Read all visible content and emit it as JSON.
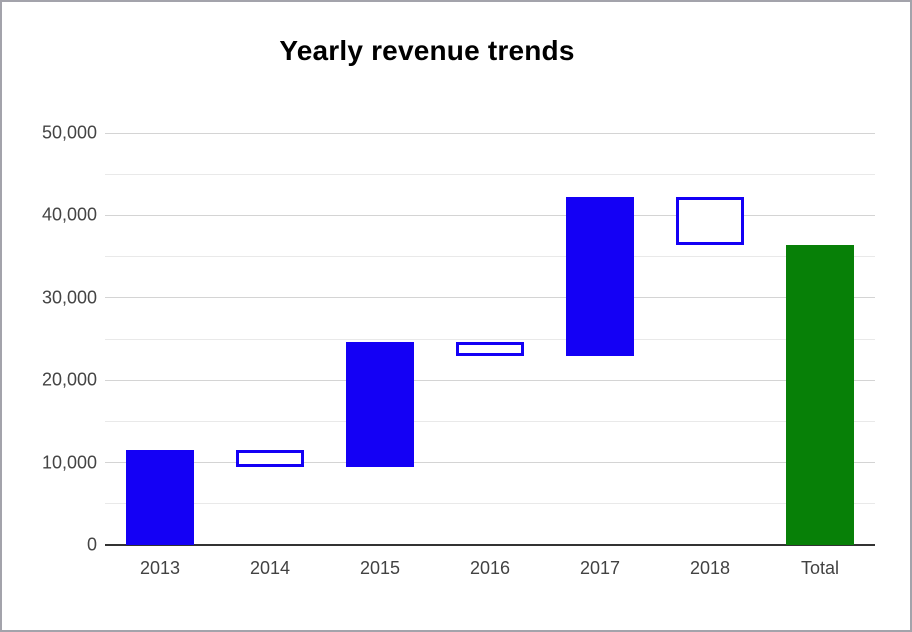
{
  "chart_data": {
    "type": "waterfall",
    "title": "Yearly revenue trends",
    "categories": [
      "2013",
      "2014",
      "2015",
      "2016",
      "2017",
      "2018",
      "Total"
    ],
    "bars": [
      {
        "label": "2013",
        "start": 0,
        "end": 11500,
        "delta": 11500,
        "style": "filled-blue",
        "role": "increase"
      },
      {
        "label": "2014",
        "start": 11500,
        "end": 9500,
        "delta": -2000,
        "style": "outlined",
        "role": "decrease"
      },
      {
        "label": "2015",
        "start": 9500,
        "end": 24600,
        "delta": 15100,
        "style": "filled-blue",
        "role": "increase"
      },
      {
        "label": "2016",
        "start": 24600,
        "end": 22900,
        "delta": -1700,
        "style": "outlined",
        "role": "decrease"
      },
      {
        "label": "2017",
        "start": 22900,
        "end": 42200,
        "delta": 19300,
        "style": "filled-blue",
        "role": "increase"
      },
      {
        "label": "2018",
        "start": 42200,
        "end": 36400,
        "delta": -5800,
        "style": "outlined",
        "role": "decrease"
      },
      {
        "label": "Total",
        "start": 0,
        "end": 36400,
        "delta": 36400,
        "style": "filled-green",
        "role": "total"
      }
    ],
    "y_axis": {
      "min": 0,
      "max": 50000,
      "major_step": 10000,
      "minor_step": 5000,
      "tick_labels": [
        "0",
        "10,000",
        "20,000",
        "30,000",
        "40,000",
        "50,000"
      ]
    },
    "xlabel": "",
    "ylabel": "",
    "legend": "none",
    "grid": "on"
  },
  "colors": {
    "increase_fill": "#1400f5",
    "decrease_outline": "#1400f5",
    "total_fill": "#078007",
    "gridline_major": "#d4d4d4",
    "gridline_minor": "#e9e9e9",
    "axis_line": "#333333",
    "tick_label": "#444444",
    "title": "#000000",
    "frame_border": "#a3a3ab",
    "background": "#ffffff"
  }
}
